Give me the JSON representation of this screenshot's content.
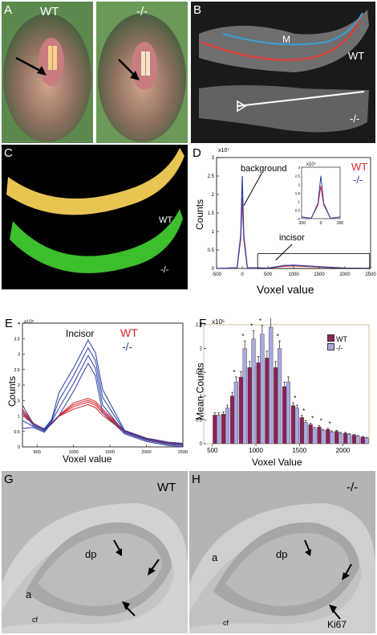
{
  "panels": {
    "A": {
      "label": "A",
      "left_tag": "WT",
      "right_tag": "-/-"
    },
    "B": {
      "label": "B",
      "m_label": "M",
      "wt_tag": "WT",
      "ko_tag": "-/-"
    },
    "C": {
      "label": "C",
      "wt_tag": "WT",
      "ko_tag": "-/-"
    },
    "D": {
      "label": "D",
      "ylabel": "Counts",
      "xlabel": "Voxel value",
      "exp": "x10⁷",
      "inset_exp": "x10⁷",
      "legend_wt": "WT",
      "legend_ko": "-/-",
      "ann_background": "background",
      "ann_incisor": "incisor",
      "xticks": [
        "-500",
        "0",
        "500",
        "1000",
        "1500",
        "2000",
        "2500"
      ],
      "yticks": [
        "0",
        "0.5",
        "1",
        "1.5",
        "2",
        "2.5",
        "3"
      ],
      "inset_xticks": [
        "-200",
        "0",
        "200"
      ],
      "inset_yticks": [
        "0",
        "0.5",
        "1",
        "1.5",
        "2",
        "2.5",
        "3"
      ]
    },
    "E": {
      "label": "E",
      "ylabel": "Counts",
      "xlabel": "Voxel value",
      "exp": "x10⁵",
      "title": "Incisor",
      "legend_wt": "WT",
      "legend_ko": "-/-",
      "xticks": [
        "500",
        "1000",
        "1500",
        "2000",
        "2500"
      ],
      "yticks": [
        "0",
        "0.5",
        "1",
        "1.5",
        "2",
        "2.5",
        "3",
        "3.5",
        "4"
      ]
    },
    "F": {
      "label": "F",
      "ylabel": "Mean  Counts",
      "xlabel": "Voxel Value",
      "exp": "x10⁵",
      "legend_wt": "WT",
      "legend_ko": "-/-",
      "xticks": [
        "500",
        "1000",
        "1500",
        "2000"
      ],
      "yticks": [
        "0",
        "0.5",
        "1",
        "1.5",
        "2",
        "2.5"
      ]
    },
    "G": {
      "label": "G",
      "tag": "WT",
      "dp": "dp",
      "a": "a",
      "cf": "cf"
    },
    "H": {
      "label": "H",
      "tag": "-/-",
      "dp": "dp",
      "a": "a",
      "cf": "cf",
      "ki67": "Ki67"
    }
  },
  "colors": {
    "wt": "#d9242b",
    "ko": "#2b3fa6",
    "bar_wt": "#8b2257",
    "bar_ko": "#a9a9e0"
  },
  "chart_data": [
    {
      "type": "line",
      "panel": "D",
      "xlabel": "Voxel value",
      "ylabel": "Counts",
      "xlim": [
        -500,
        2500
      ],
      "ylim": [
        0,
        3
      ],
      "y_scale_exponent": 7,
      "series": [
        {
          "name": "WT",
          "x": [
            -500,
            -100,
            -30,
            0,
            30,
            100,
            500,
            800,
            1000,
            1500,
            2000,
            2500
          ],
          "y": [
            0,
            0.02,
            0.8,
            1.9,
            0.8,
            0.02,
            0.01,
            0.06,
            0.07,
            0.04,
            0.01,
            0
          ]
        },
        {
          "name": "-/-",
          "x": [
            -500,
            -100,
            -30,
            0,
            30,
            100,
            500,
            800,
            1000,
            1500,
            2000,
            2500
          ],
          "y": [
            0,
            0.02,
            0.9,
            2.5,
            0.9,
            0.02,
            0.01,
            0.08,
            0.09,
            0.05,
            0.01,
            0
          ]
        }
      ],
      "inset": {
        "xlim": [
          -200,
          200
        ],
        "ylim": [
          0,
          3
        ]
      }
    },
    {
      "type": "line",
      "panel": "E",
      "title": "Incisor",
      "xlabel": "Voxel value",
      "ylabel": "Counts",
      "xlim": [
        300,
        2500
      ],
      "ylim": [
        0,
        4
      ],
      "y_scale_exponent": 5,
      "series": [
        {
          "name": "WT",
          "x": [
            300,
            450,
            600,
            700,
            800,
            1000,
            1200,
            1300,
            1400,
            1700,
            2000,
            2300,
            2500
          ],
          "y": [
            1.1,
            0.75,
            0.55,
            0.75,
            1.0,
            1.3,
            1.45,
            1.35,
            1.1,
            0.5,
            0.25,
            0.12,
            0.08
          ]
        },
        {
          "name": "-/-",
          "x": [
            300,
            450,
            600,
            700,
            800,
            1000,
            1200,
            1300,
            1400,
            1700,
            2000,
            2300,
            2500
          ],
          "y": [
            1.1,
            0.7,
            0.55,
            0.85,
            1.5,
            2.3,
            3.2,
            2.8,
            1.6,
            0.5,
            0.25,
            0.12,
            0.08
          ]
        }
      ]
    },
    {
      "type": "bar",
      "panel": "F",
      "xlabel": "Voxel Value",
      "ylabel": "Mean  Counts",
      "ylim": [
        0,
        2.5
      ],
      "y_scale_exponent": 5,
      "categories": [
        550,
        650,
        750,
        850,
        950,
        1050,
        1150,
        1250,
        1350,
        1450,
        1550,
        1650,
        1750,
        1850,
        1950,
        2050,
        2150,
        2250
      ],
      "series": [
        {
          "name": "WT",
          "values": [
            0.6,
            0.62,
            1.0,
            1.4,
            1.6,
            1.7,
            1.8,
            1.6,
            1.2,
            0.8,
            0.55,
            0.4,
            0.35,
            0.3,
            0.26,
            0.22,
            0.18,
            0.14
          ]
        },
        {
          "name": "-/-",
          "values": [
            0.6,
            0.75,
            1.3,
            2.0,
            2.2,
            2.3,
            2.45,
            2.0,
            1.3,
            0.75,
            0.45,
            0.32,
            0.28,
            0.25,
            0.22,
            0.2,
            0.16,
            0.12
          ]
        }
      ],
      "significance": [
        "",
        "",
        "*",
        "*",
        "*",
        "*",
        "*",
        "*",
        "",
        "*",
        "*",
        "*",
        "*",
        "*",
        "",
        "",
        "",
        ""
      ]
    }
  ]
}
